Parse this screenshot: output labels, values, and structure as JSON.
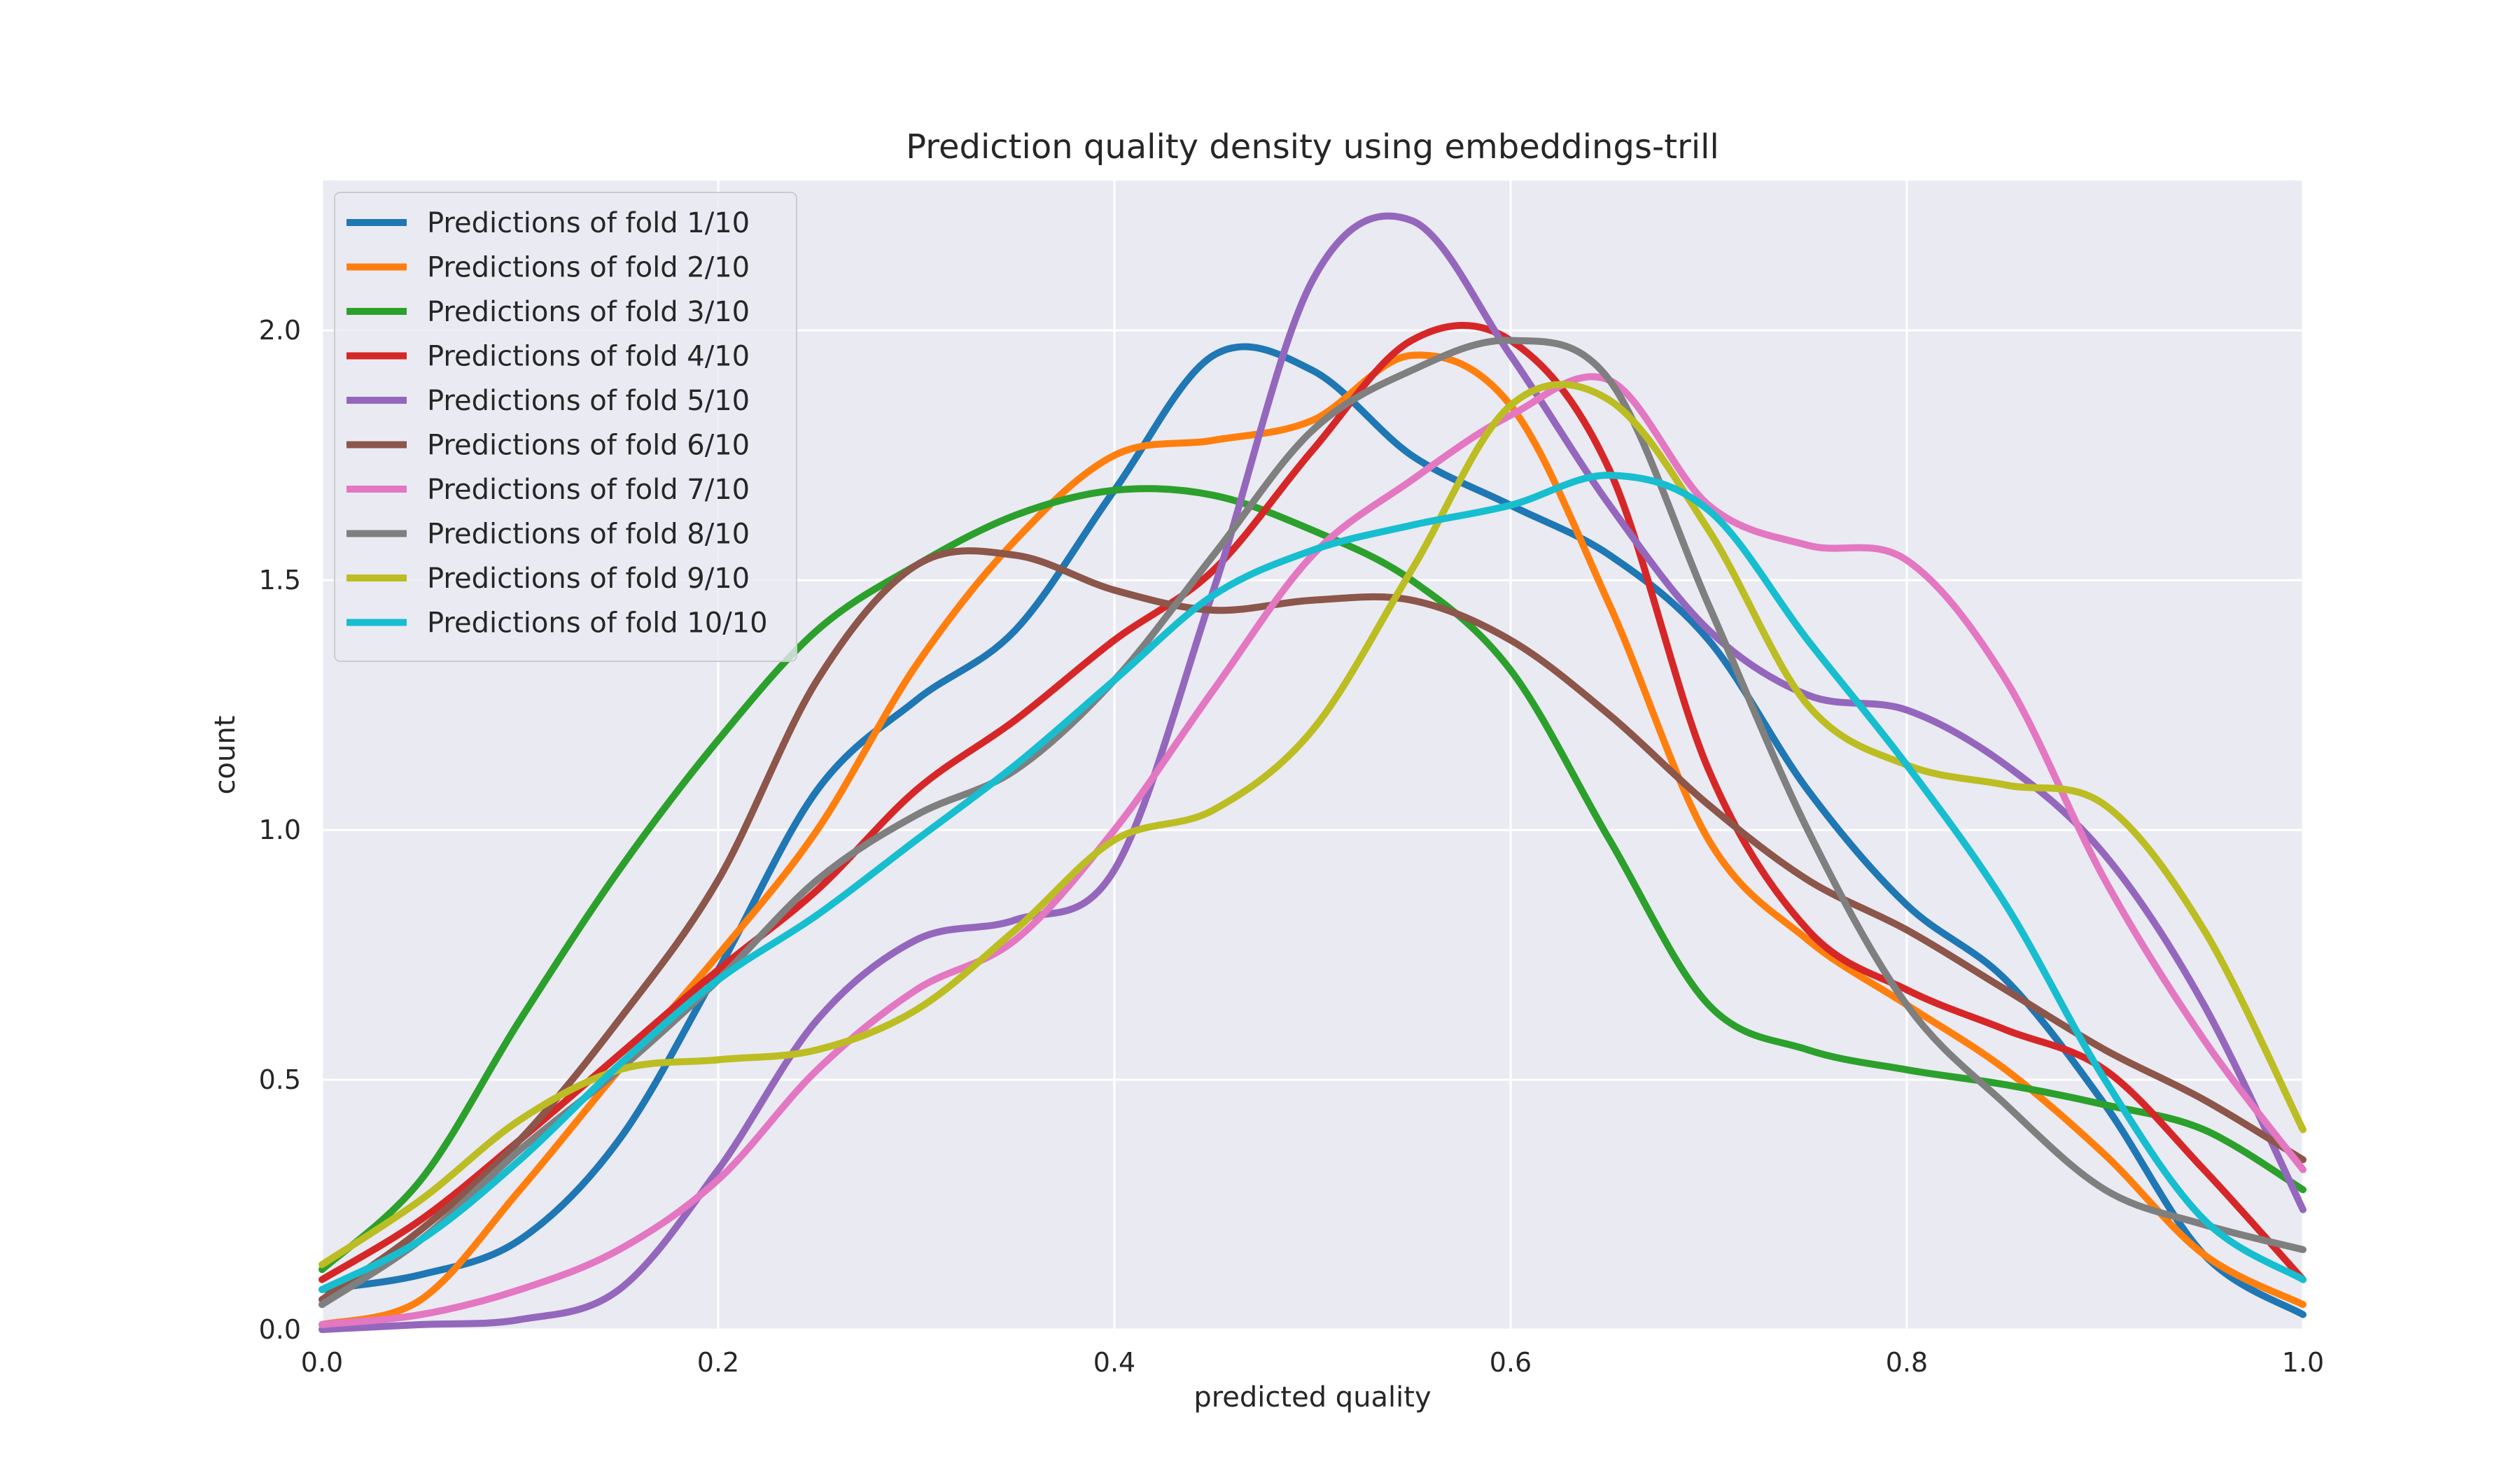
{
  "colors": {
    "figure_background": "#ffffff",
    "plot_background": "#eaeaf2",
    "grid": "#ffffff",
    "text": "#262626",
    "legend_background": "#eaeaf2",
    "legend_border": "#cccccc"
  },
  "chart_data": {
    "type": "line",
    "title": "Prediction quality density using embeddings-trill",
    "xlabel": "predicted quality",
    "ylabel": "count",
    "xlim": [
      0.0,
      1.0
    ],
    "ylim": [
      0.0,
      2.3
    ],
    "x_ticks": [
      "0.0",
      "0.2",
      "0.4",
      "0.6",
      "0.8",
      "1.0"
    ],
    "y_ticks": [
      "0.0",
      "0.5",
      "1.0",
      "1.5",
      "2.0"
    ],
    "grid": true,
    "legend_position": "top-left",
    "x": [
      0.0,
      0.05,
      0.1,
      0.15,
      0.2,
      0.25,
      0.3,
      0.35,
      0.4,
      0.45,
      0.5,
      0.55,
      0.6,
      0.65,
      0.7,
      0.75,
      0.8,
      0.85,
      0.9,
      0.95,
      1.0
    ],
    "series": [
      {
        "name": "Predictions of fold 1/10",
        "color": "#1f77b4",
        "values": [
          0.08,
          0.11,
          0.18,
          0.38,
          0.72,
          1.08,
          1.26,
          1.4,
          1.68,
          1.95,
          1.92,
          1.75,
          1.65,
          1.55,
          1.38,
          1.08,
          0.85,
          0.7,
          0.45,
          0.15,
          0.03
        ]
      },
      {
        "name": "Predictions of fold 2/10",
        "color": "#ff7f0e",
        "values": [
          0.01,
          0.06,
          0.28,
          0.52,
          0.75,
          1.0,
          1.33,
          1.58,
          1.75,
          1.78,
          1.82,
          1.95,
          1.85,
          1.45,
          0.98,
          0.78,
          0.65,
          0.52,
          0.35,
          0.15,
          0.05
        ]
      },
      {
        "name": "Predictions of fold 3/10",
        "color": "#2ca02c",
        "values": [
          0.12,
          0.3,
          0.62,
          0.92,
          1.18,
          1.4,
          1.53,
          1.63,
          1.68,
          1.67,
          1.6,
          1.5,
          1.32,
          0.98,
          0.65,
          0.56,
          0.52,
          0.49,
          0.45,
          0.4,
          0.28
        ]
      },
      {
        "name": "Predictions of fold 4/10",
        "color": "#d62728",
        "values": [
          0.1,
          0.22,
          0.38,
          0.55,
          0.72,
          0.88,
          1.08,
          1.22,
          1.38,
          1.52,
          1.76,
          1.98,
          1.98,
          1.72,
          1.12,
          0.8,
          0.68,
          0.6,
          0.52,
          0.32,
          0.1
        ]
      },
      {
        "name": "Predictions of fold 5/10",
        "color": "#9467bd",
        "values": [
          0.0,
          0.01,
          0.02,
          0.08,
          0.32,
          0.62,
          0.78,
          0.82,
          0.92,
          1.48,
          2.1,
          2.22,
          1.95,
          1.65,
          1.4,
          1.27,
          1.24,
          1.13,
          0.95,
          0.65,
          0.24
        ]
      },
      {
        "name": "Predictions of fold 6/10",
        "color": "#8c564b",
        "values": [
          0.06,
          0.2,
          0.38,
          0.62,
          0.9,
          1.3,
          1.53,
          1.55,
          1.48,
          1.44,
          1.46,
          1.46,
          1.38,
          1.23,
          1.05,
          0.9,
          0.8,
          0.68,
          0.56,
          0.46,
          0.34
        ]
      },
      {
        "name": "Predictions of fold 7/10",
        "color": "#e377c2",
        "values": [
          0.01,
          0.03,
          0.08,
          0.16,
          0.3,
          0.52,
          0.68,
          0.78,
          1.0,
          1.28,
          1.55,
          1.7,
          1.83,
          1.9,
          1.65,
          1.57,
          1.54,
          1.3,
          0.9,
          0.58,
          0.32
        ]
      },
      {
        "name": "Predictions of fold 8/10",
        "color": "#7f7f7f",
        "values": [
          0.05,
          0.18,
          0.36,
          0.52,
          0.7,
          0.9,
          1.03,
          1.12,
          1.3,
          1.55,
          1.8,
          1.92,
          1.98,
          1.9,
          1.45,
          1.0,
          0.65,
          0.45,
          0.28,
          0.21,
          0.16
        ]
      },
      {
        "name": "Predictions of fold 9/10",
        "color": "#bcbd22",
        "values": [
          0.13,
          0.26,
          0.42,
          0.52,
          0.54,
          0.56,
          0.64,
          0.8,
          0.98,
          1.04,
          1.2,
          1.52,
          1.85,
          1.86,
          1.6,
          1.25,
          1.13,
          1.09,
          1.05,
          0.8,
          0.4
        ]
      },
      {
        "name": "Predictions of fold 10/10",
        "color": "#17becf",
        "values": [
          0.08,
          0.18,
          0.34,
          0.53,
          0.7,
          0.83,
          0.98,
          1.13,
          1.3,
          1.47,
          1.56,
          1.61,
          1.65,
          1.71,
          1.64,
          1.38,
          1.13,
          0.85,
          0.5,
          0.22,
          0.1
        ]
      }
    ]
  }
}
